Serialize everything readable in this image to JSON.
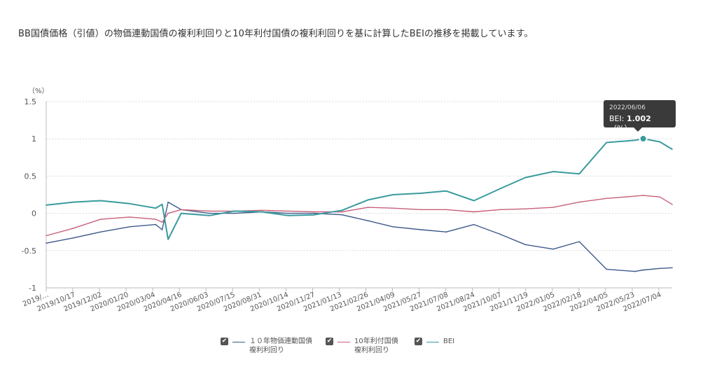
{
  "heading": "BB国債価格（引値）の物価連動国債の複利利回りと10年利付国債の複利利回りを基に計算したBEIの推移を掲載しています。",
  "colors": {
    "linker": "#3d5a8a",
    "jgb10": "#c8607a",
    "bei": "#3a9b9f",
    "grid": "#dcdcdc",
    "tooltip_bg": "#3a3a3a"
  },
  "chart_data": {
    "type": "line",
    "unit_label": "（%）",
    "ylim": [
      -1,
      1.5
    ],
    "yticks": [
      "1.5",
      "1",
      "0.5",
      "0",
      "-0.5",
      "-1"
    ],
    "grid": true,
    "legend_position": "bottom",
    "x_tick_labels": [
      "2019/…",
      "2019/10/17",
      "2019/12/02",
      "2020/01/20",
      "2020/03/04",
      "2020/04/16",
      "2020/06/03",
      "2020/07/15",
      "2020/08/31",
      "2020/10/14",
      "2020/11/27",
      "2021/01/13",
      "2021/02/26",
      "2021/04/09",
      "2021/05/27",
      "2021/07/08",
      "2021/08/24",
      "2021/10/07",
      "2021/11/19",
      "2022/01/05",
      "2022/02/18",
      "2022/04/05",
      "2022/05/23",
      "2022/07/04"
    ],
    "x": [
      "2019/09/01",
      "2019/10/17",
      "2019/12/02",
      "2020/01/20",
      "2020/03/04",
      "2020/03/15",
      "2020/03/25",
      "2020/04/16",
      "2020/06/03",
      "2020/07/15",
      "2020/08/31",
      "2020/10/14",
      "2020/11/27",
      "2021/01/13",
      "2021/02/26",
      "2021/04/09",
      "2021/05/27",
      "2021/07/08",
      "2021/08/24",
      "2021/10/07",
      "2021/11/19",
      "2022/01/05",
      "2022/02/18",
      "2022/04/05",
      "2022/05/23",
      "2022/06/06",
      "2022/07/04",
      "2022/07/25"
    ],
    "series": [
      {
        "name": "１０年物価連動国債\n複利利回り",
        "key": "linker",
        "values": [
          -0.4,
          -0.33,
          -0.25,
          -0.18,
          -0.15,
          -0.22,
          0.15,
          0.05,
          0.0,
          0.0,
          0.02,
          0.0,
          0.0,
          -0.02,
          -0.1,
          -0.18,
          -0.22,
          -0.25,
          -0.15,
          -0.28,
          -0.42,
          -0.48,
          -0.38,
          -0.75,
          -0.78,
          -0.76,
          -0.74,
          -0.73
        ]
      },
      {
        "name": "10年利付国債\n複利利回り",
        "key": "jgb10",
        "values": [
          -0.3,
          -0.2,
          -0.08,
          -0.05,
          -0.08,
          -0.12,
          0.0,
          0.05,
          0.03,
          0.03,
          0.04,
          0.03,
          0.02,
          0.02,
          0.08,
          0.07,
          0.05,
          0.05,
          0.02,
          0.05,
          0.06,
          0.08,
          0.15,
          0.2,
          0.23,
          0.24,
          0.22,
          0.12
        ]
      },
      {
        "name": "BEI",
        "key": "bei",
        "values": [
          0.11,
          0.15,
          0.17,
          0.13,
          0.07,
          0.12,
          -0.35,
          0.0,
          -0.03,
          0.03,
          0.02,
          -0.03,
          -0.02,
          0.04,
          0.18,
          0.25,
          0.27,
          0.3,
          0.17,
          0.33,
          0.48,
          0.56,
          0.53,
          0.95,
          0.98,
          1.002,
          0.96,
          0.86
        ]
      }
    ],
    "tooltip": {
      "date": "2022/06/06",
      "label": "BEI: ",
      "value": "1.002",
      "unit": "（%）"
    }
  },
  "legend": [
    {
      "line1": "１０年物価連動国債",
      "line2": "複利利回り"
    },
    {
      "line1": "10年利付国債",
      "line2": "複利利回り"
    },
    {
      "line1": "BEI",
      "line2": ""
    }
  ]
}
